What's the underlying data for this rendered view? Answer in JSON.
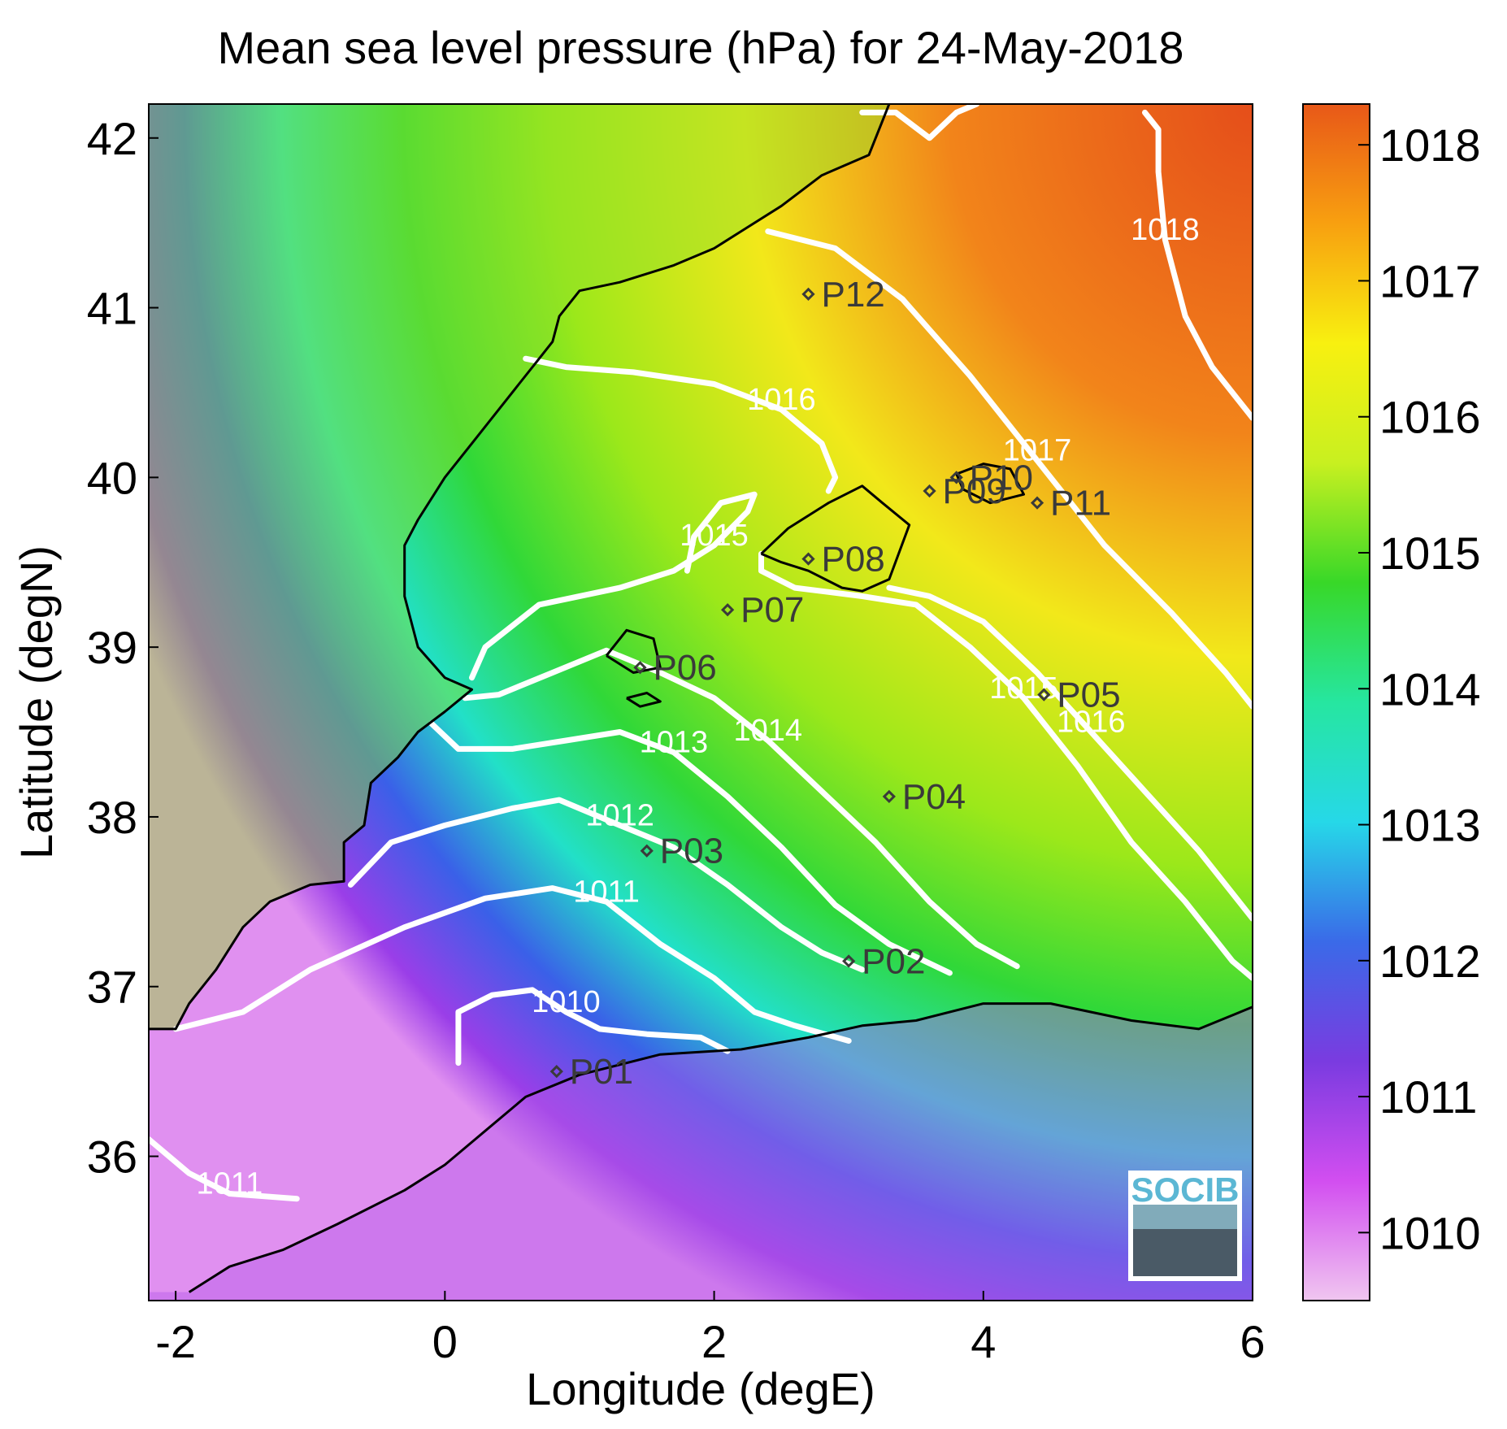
{
  "chart_data": {
    "type": "heatmap",
    "title": "Mean sea level pressure (hPa) for 24-May-2018",
    "xlabel": "Longitude (degE)",
    "ylabel": "Latitude (degN)",
    "xlim": [
      -2.2,
      6.0
    ],
    "ylim": [
      35.15,
      42.2
    ],
    "x_ticks": [
      -2,
      0,
      2,
      4,
      6
    ],
    "y_ticks": [
      36,
      37,
      38,
      39,
      40,
      41,
      42
    ],
    "colorbar": {
      "min": 1009.5,
      "max": 1018.3,
      "ticks": [
        1010,
        1011,
        1012,
        1013,
        1014,
        1015,
        1016,
        1017,
        1018
      ],
      "colors": [
        "#f0c6f0",
        "#d24ef0",
        "#7a3be0",
        "#3a6ae8",
        "#26d8e8",
        "#26e6a0",
        "#38d828",
        "#c8f020",
        "#f8f010",
        "#f8a010",
        "#e85818"
      ]
    },
    "contours": [
      {
        "level": 1010,
        "label": "1010",
        "points": [
          [
            0.1,
            36.55
          ],
          [
            0.1,
            36.85
          ],
          [
            0.35,
            36.95
          ],
          [
            0.65,
            36.98
          ],
          [
            0.9,
            36.85
          ],
          [
            1.15,
            36.75
          ],
          [
            1.5,
            36.72
          ],
          [
            1.9,
            36.7
          ],
          [
            2.1,
            36.62
          ]
        ]
      },
      {
        "level": 1011,
        "label": "1011",
        "points": [
          [
            -2.0,
            36.75
          ],
          [
            -1.5,
            36.85
          ],
          [
            -1.0,
            37.1
          ],
          [
            -0.3,
            37.35
          ],
          [
            0.3,
            37.52
          ],
          [
            0.8,
            37.58
          ],
          [
            1.2,
            37.5
          ],
          [
            1.6,
            37.25
          ],
          [
            2.0,
            37.05
          ],
          [
            2.3,
            36.85
          ],
          [
            2.6,
            36.77
          ],
          [
            3.0,
            36.68
          ]
        ]
      },
      {
        "level": 1011,
        "label": "1011",
        "points": [
          [
            -2.2,
            36.1
          ],
          [
            -1.9,
            35.9
          ],
          [
            -1.6,
            35.78
          ],
          [
            -1.1,
            35.75
          ]
        ]
      },
      {
        "level": 1012,
        "label": "1012",
        "points": [
          [
            -0.7,
            37.6
          ],
          [
            -0.4,
            37.85
          ],
          [
            0.0,
            37.95
          ],
          [
            0.5,
            38.05
          ],
          [
            0.85,
            38.1
          ],
          [
            1.3,
            37.95
          ],
          [
            1.7,
            37.82
          ],
          [
            2.1,
            37.6
          ],
          [
            2.5,
            37.35
          ],
          [
            2.8,
            37.2
          ],
          [
            3.1,
            37.1
          ]
        ]
      },
      {
        "level": 1013,
        "label": "1013",
        "points": [
          [
            -0.1,
            38.55
          ],
          [
            0.1,
            38.4
          ],
          [
            0.5,
            38.4
          ],
          [
            0.9,
            38.45
          ],
          [
            1.3,
            38.5
          ],
          [
            1.7,
            38.38
          ],
          [
            2.1,
            38.12
          ],
          [
            2.5,
            37.82
          ],
          [
            2.9,
            37.48
          ],
          [
            3.3,
            37.25
          ],
          [
            3.75,
            37.08
          ]
        ]
      },
      {
        "level": 1014,
        "label": "1014",
        "points": [
          [
            0.15,
            38.7
          ],
          [
            0.4,
            38.72
          ],
          [
            0.8,
            38.85
          ],
          [
            1.2,
            38.98
          ],
          [
            1.6,
            38.85
          ],
          [
            2.0,
            38.7
          ],
          [
            2.4,
            38.45
          ],
          [
            2.8,
            38.15
          ],
          [
            3.2,
            37.85
          ],
          [
            3.6,
            37.5
          ],
          [
            3.95,
            37.25
          ],
          [
            4.25,
            37.12
          ]
        ]
      },
      {
        "level": 1015,
        "label": "1015",
        "points": [
          [
            1.8,
            39.45
          ],
          [
            1.85,
            39.65
          ],
          [
            2.05,
            39.85
          ],
          [
            2.3,
            39.9
          ],
          [
            2.25,
            39.8
          ],
          [
            2.0,
            39.6
          ],
          [
            1.7,
            39.45
          ],
          [
            1.3,
            39.35
          ],
          [
            0.7,
            39.25
          ],
          [
            0.3,
            39.0
          ],
          [
            0.2,
            38.82
          ]
        ]
      },
      {
        "level": 1015,
        "label": "1015",
        "points": [
          [
            2.35,
            39.55
          ],
          [
            2.35,
            39.45
          ],
          [
            2.6,
            39.35
          ],
          [
            3.1,
            39.3
          ],
          [
            3.5,
            39.25
          ],
          [
            3.9,
            39.0
          ],
          [
            4.3,
            38.7
          ],
          [
            4.7,
            38.3
          ],
          [
            5.1,
            37.85
          ],
          [
            5.5,
            37.5
          ],
          [
            5.85,
            37.15
          ],
          [
            6.0,
            37.05
          ]
        ]
      },
      {
        "level": 1016,
        "label": "1016",
        "points": [
          [
            0.6,
            40.7
          ],
          [
            0.9,
            40.65
          ],
          [
            1.4,
            40.62
          ],
          [
            2.0,
            40.55
          ],
          [
            2.5,
            40.4
          ],
          [
            2.8,
            40.2
          ],
          [
            2.9,
            40.0
          ],
          [
            2.85,
            39.92
          ]
        ]
      },
      {
        "level": 1016,
        "label": "1016",
        "points": [
          [
            3.3,
            39.35
          ],
          [
            3.6,
            39.3
          ],
          [
            4.0,
            39.15
          ],
          [
            4.4,
            38.85
          ],
          [
            4.8,
            38.5
          ],
          [
            5.2,
            38.15
          ],
          [
            5.6,
            37.8
          ],
          [
            6.0,
            37.4
          ]
        ]
      },
      {
        "level": 1017,
        "label": "1017",
        "points": [
          [
            2.4,
            41.45
          ],
          [
            2.9,
            41.35
          ],
          [
            3.4,
            41.05
          ],
          [
            3.9,
            40.6
          ],
          [
            4.4,
            40.1
          ],
          [
            4.9,
            39.6
          ],
          [
            5.4,
            39.2
          ],
          [
            5.8,
            38.85
          ],
          [
            6.0,
            38.65
          ]
        ]
      },
      {
        "level": 1017,
        "label": "",
        "points": [
          [
            3.1,
            42.15
          ],
          [
            3.35,
            42.15
          ],
          [
            3.6,
            42.0
          ],
          [
            3.8,
            42.15
          ],
          [
            3.95,
            42.2
          ]
        ]
      },
      {
        "level": 1018,
        "label": "1018",
        "points": [
          [
            5.2,
            42.15
          ],
          [
            5.3,
            42.05
          ],
          [
            5.3,
            41.8
          ],
          [
            5.35,
            41.4
          ],
          [
            5.5,
            40.95
          ],
          [
            5.7,
            40.65
          ],
          [
            6.0,
            40.35
          ]
        ]
      }
    ],
    "stations": [
      {
        "name": "P01",
        "lon": 0.83,
        "lat": 36.5
      },
      {
        "name": "P02",
        "lon": 3.0,
        "lat": 37.15
      },
      {
        "name": "P03",
        "lon": 1.5,
        "lat": 37.8
      },
      {
        "name": "P04",
        "lon": 3.3,
        "lat": 38.12
      },
      {
        "name": "P05",
        "lon": 4.45,
        "lat": 38.72
      },
      {
        "name": "P06",
        "lon": 1.45,
        "lat": 38.88
      },
      {
        "name": "P07",
        "lon": 2.1,
        "lat": 39.22
      },
      {
        "name": "P08",
        "lon": 2.7,
        "lat": 39.52
      },
      {
        "name": "P09",
        "lon": 3.6,
        "lat": 39.92
      },
      {
        "name": "P10",
        "lon": 3.8,
        "lat": 40.0
      },
      {
        "name": "P11",
        "lon": 4.4,
        "lat": 39.85
      },
      {
        "name": "P12",
        "lon": 2.7,
        "lat": 41.08
      }
    ],
    "coastlines": [
      {
        "name": "iberian-coast",
        "points": [
          [
            -2.2,
            36.75
          ],
          [
            -2.0,
            36.75
          ],
          [
            -1.9,
            36.9
          ],
          [
            -1.7,
            37.1
          ],
          [
            -1.5,
            37.35
          ],
          [
            -1.3,
            37.5
          ],
          [
            -1.0,
            37.6
          ],
          [
            -0.75,
            37.62
          ],
          [
            -0.75,
            37.85
          ],
          [
            -0.6,
            37.95
          ],
          [
            -0.55,
            38.2
          ],
          [
            -0.35,
            38.35
          ],
          [
            -0.2,
            38.5
          ],
          [
            0.0,
            38.62
          ],
          [
            0.2,
            38.75
          ],
          [
            0.0,
            38.82
          ],
          [
            -0.2,
            39.0
          ],
          [
            -0.3,
            39.3
          ],
          [
            -0.3,
            39.6
          ],
          [
            -0.2,
            39.75
          ],
          [
            0.0,
            40.0
          ],
          [
            0.2,
            40.2
          ],
          [
            0.4,
            40.4
          ],
          [
            0.55,
            40.55
          ],
          [
            0.7,
            40.7
          ],
          [
            0.8,
            40.8
          ],
          [
            0.85,
            40.95
          ],
          [
            1.0,
            41.1
          ],
          [
            1.3,
            41.15
          ],
          [
            1.7,
            41.25
          ],
          [
            2.0,
            41.35
          ],
          [
            2.2,
            41.45
          ],
          [
            2.5,
            41.6
          ],
          [
            2.8,
            41.78
          ],
          [
            3.15,
            41.9
          ],
          [
            3.25,
            42.1
          ],
          [
            3.3,
            42.2
          ]
        ]
      },
      {
        "name": "african-coast",
        "points": [
          [
            -1.9,
            35.2
          ],
          [
            -1.6,
            35.35
          ],
          [
            -1.2,
            35.45
          ],
          [
            -0.8,
            35.6
          ],
          [
            -0.3,
            35.8
          ],
          [
            0.0,
            35.95
          ],
          [
            0.3,
            36.15
          ],
          [
            0.6,
            36.35
          ],
          [
            1.0,
            36.48
          ],
          [
            1.6,
            36.6
          ],
          [
            2.2,
            36.63
          ],
          [
            2.7,
            36.7
          ],
          [
            3.1,
            36.77
          ],
          [
            3.5,
            36.8
          ],
          [
            4.0,
            36.9
          ],
          [
            4.5,
            36.9
          ],
          [
            5.1,
            36.8
          ],
          [
            5.6,
            36.75
          ],
          [
            6.0,
            36.88
          ]
        ]
      },
      {
        "name": "mallorca",
        "points": [
          [
            2.35,
            39.55
          ],
          [
            2.55,
            39.7
          ],
          [
            2.85,
            39.85
          ],
          [
            3.1,
            39.95
          ],
          [
            3.25,
            39.85
          ],
          [
            3.45,
            39.72
          ],
          [
            3.3,
            39.4
          ],
          [
            3.1,
            39.33
          ],
          [
            2.95,
            39.35
          ],
          [
            2.7,
            39.45
          ],
          [
            2.5,
            39.5
          ],
          [
            2.35,
            39.55
          ]
        ]
      },
      {
        "name": "menorca",
        "points": [
          [
            3.8,
            40.02
          ],
          [
            4.0,
            40.08
          ],
          [
            4.2,
            40.05
          ],
          [
            4.3,
            39.9
          ],
          [
            4.05,
            39.85
          ],
          [
            3.85,
            39.93
          ],
          [
            3.8,
            40.02
          ]
        ]
      },
      {
        "name": "ibiza",
        "points": [
          [
            1.2,
            38.95
          ],
          [
            1.35,
            39.1
          ],
          [
            1.55,
            39.05
          ],
          [
            1.6,
            38.88
          ],
          [
            1.4,
            38.85
          ],
          [
            1.2,
            38.95
          ]
        ]
      },
      {
        "name": "formentera",
        "points": [
          [
            1.35,
            38.7
          ],
          [
            1.5,
            38.73
          ],
          [
            1.6,
            38.68
          ],
          [
            1.45,
            38.65
          ],
          [
            1.35,
            38.7
          ]
        ]
      }
    ]
  },
  "logo": {
    "text": "SOCIB"
  }
}
